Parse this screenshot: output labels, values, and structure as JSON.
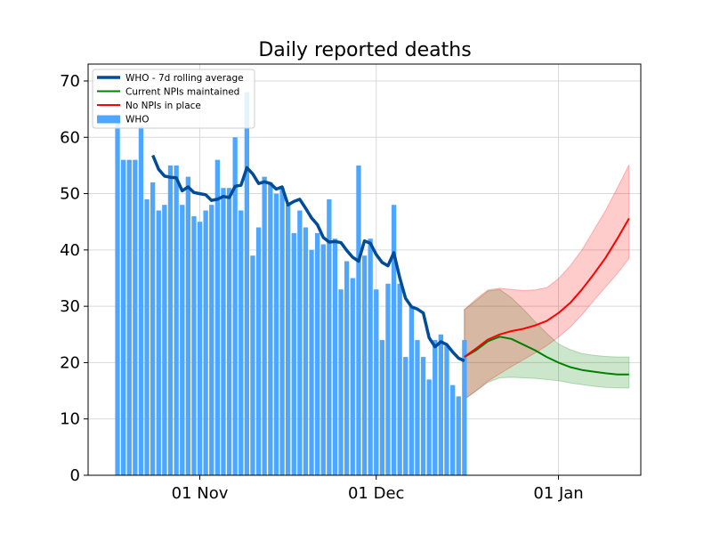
{
  "chart_data": {
    "type": "bar",
    "title": "Daily reported deaths",
    "xlabel": "",
    "ylabel": "",
    "x_axis": {
      "type": "date",
      "range": [
        "2020-10-13",
        "2021-01-15"
      ],
      "ticks": [
        {
          "date": "2020-11-01",
          "label": "01 Nov"
        },
        {
          "date": "2020-12-01",
          "label": "01 Dec"
        },
        {
          "date": "2021-01-01",
          "label": "01 Jan"
        }
      ]
    },
    "ylim": [
      0,
      73
    ],
    "yticks": [
      0,
      10,
      20,
      30,
      40,
      50,
      60,
      70
    ],
    "grid": true,
    "legend": {
      "position": "top-left",
      "entries": [
        {
          "label": "WHO - 7d rolling average",
          "style": "line",
          "color": "#004c99",
          "width": "thick"
        },
        {
          "label": "Current NPIs maintained",
          "style": "line",
          "color": "#008000",
          "width": "thin"
        },
        {
          "label": "No NPIs in place",
          "style": "line",
          "color": "#ff0000",
          "width": "thin"
        },
        {
          "label": "WHO",
          "style": "bar",
          "color": "#4da6ff"
        }
      ]
    },
    "bars": {
      "name": "WHO",
      "color": "#4da6ff",
      "x": [
        "2020-10-18",
        "2020-10-19",
        "2020-10-20",
        "2020-10-21",
        "2020-10-22",
        "2020-10-23",
        "2020-10-24",
        "2020-10-25",
        "2020-10-26",
        "2020-10-27",
        "2020-10-28",
        "2020-10-29",
        "2020-10-30",
        "2020-10-31",
        "2020-11-01",
        "2020-11-02",
        "2020-11-03",
        "2020-11-04",
        "2020-11-05",
        "2020-11-06",
        "2020-11-07",
        "2020-11-08",
        "2020-11-09",
        "2020-11-10",
        "2020-11-11",
        "2020-11-12",
        "2020-11-13",
        "2020-11-14",
        "2020-11-15",
        "2020-11-16",
        "2020-11-17",
        "2020-11-18",
        "2020-11-19",
        "2020-11-20",
        "2020-11-21",
        "2020-11-22",
        "2020-11-23",
        "2020-11-24",
        "2020-11-25",
        "2020-11-26",
        "2020-11-27",
        "2020-11-28",
        "2020-11-29",
        "2020-11-30",
        "2020-12-01",
        "2020-12-02",
        "2020-12-03",
        "2020-12-04",
        "2020-12-05",
        "2020-12-06",
        "2020-12-07",
        "2020-12-08",
        "2020-12-09",
        "2020-12-10",
        "2020-12-11",
        "2020-12-12",
        "2020-12-13",
        "2020-12-14",
        "2020-12-15",
        "2020-12-16",
        "2020-12-17",
        "2020-12-18"
      ],
      "values": [
        63,
        56,
        56,
        56,
        62,
        49,
        52,
        47,
        48,
        55,
        55,
        48,
        53,
        46,
        45,
        47,
        48,
        56,
        51,
        51,
        60,
        47,
        68,
        39,
        44,
        53,
        52,
        50,
        51,
        48,
        43,
        47,
        44,
        40,
        43,
        41,
        49,
        42,
        33,
        38,
        35,
        55,
        39,
        42,
        33,
        24,
        34,
        48,
        34,
        21,
        30,
        24,
        21,
        17,
        24,
        25,
        23,
        16,
        14,
        24,
        0,
        0
      ]
    },
    "series": [
      {
        "name": "WHO - 7d rolling average",
        "color": "#004c99",
        "x": [
          "2020-10-24",
          "2020-10-25",
          "2020-10-26",
          "2020-10-27",
          "2020-10-28",
          "2020-10-29",
          "2020-10-30",
          "2020-10-31",
          "2020-11-01",
          "2020-11-02",
          "2020-11-03",
          "2020-11-04",
          "2020-11-05",
          "2020-11-06",
          "2020-11-07",
          "2020-11-08",
          "2020-11-09",
          "2020-11-10",
          "2020-11-11",
          "2020-11-12",
          "2020-11-13",
          "2020-11-14",
          "2020-11-15",
          "2020-11-16",
          "2020-11-17",
          "2020-11-18",
          "2020-11-19",
          "2020-11-20",
          "2020-11-21",
          "2020-11-22",
          "2020-11-23",
          "2020-11-24",
          "2020-11-25",
          "2020-11-26",
          "2020-11-27",
          "2020-11-28",
          "2020-11-29",
          "2020-11-30",
          "2020-12-01",
          "2020-12-02",
          "2020-12-03",
          "2020-12-04",
          "2020-12-05",
          "2020-12-06",
          "2020-12-07",
          "2020-12-08",
          "2020-12-09",
          "2020-12-10",
          "2020-12-11",
          "2020-12-12",
          "2020-12-13",
          "2020-12-14",
          "2020-12-15",
          "2020-12-16",
          "2020-12-17"
        ],
        "values": [
          56.8,
          54.3,
          53.1,
          52.9,
          52.8,
          50.5,
          51.2,
          50.2,
          50.0,
          49.8,
          48.8,
          49.0,
          49.5,
          49.3,
          51.3,
          51.5,
          54.6,
          53.5,
          51.8,
          52.1,
          51.8,
          50.8,
          51.2,
          48.0,
          48.6,
          49.0,
          47.4,
          45.7,
          44.5,
          42.2,
          41.4,
          41.5,
          41.3,
          39.9,
          38.7,
          38.0,
          41.6,
          41.2,
          39.2,
          37.8,
          37.2,
          39.5,
          35.1,
          31.4,
          29.9,
          29.5,
          28.8,
          24.4,
          22.8,
          23.7,
          23.2,
          21.9,
          20.8,
          20.3,
          null
        ]
      },
      {
        "name": "Current NPIs maintained",
        "color": "#008000",
        "x": [
          "2020-12-16",
          "2020-12-18",
          "2020-12-20",
          "2020-12-22",
          "2020-12-24",
          "2020-12-26",
          "2020-12-28",
          "2020-12-30",
          "2021-01-01",
          "2021-01-03",
          "2021-01-05",
          "2021-01-07",
          "2021-01-09",
          "2021-01-11",
          "2021-01-13"
        ],
        "values": [
          21.0,
          22.2,
          23.8,
          24.6,
          24.2,
          23.2,
          22.2,
          21.0,
          20.0,
          19.2,
          18.7,
          18.4,
          18.1,
          17.9,
          17.9
        ],
        "band_low": [
          13.5,
          15.0,
          16.5,
          17.3,
          17.4,
          17.3,
          17.2,
          17.0,
          16.8,
          16.4,
          16.1,
          15.8,
          15.6,
          15.5,
          15.5
        ],
        "band_high": [
          29.4,
          31.0,
          32.7,
          33.0,
          31.5,
          29.5,
          27.3,
          25.2,
          23.3,
          22.3,
          21.6,
          21.3,
          21.1,
          21.0,
          21.0
        ]
      },
      {
        "name": "No NPIs in place",
        "color": "#ff0000",
        "x": [
          "2020-12-16",
          "2020-12-18",
          "2020-12-20",
          "2020-12-22",
          "2020-12-24",
          "2020-12-26",
          "2020-12-28",
          "2020-12-30",
          "2021-01-01",
          "2021-01-03",
          "2021-01-05",
          "2021-01-07",
          "2021-01-09",
          "2021-01-11",
          "2021-01-13"
        ],
        "values": [
          21.0,
          22.5,
          24.1,
          25.0,
          25.6,
          26.0,
          26.6,
          27.4,
          28.8,
          30.6,
          33.0,
          35.7,
          38.6,
          42.0,
          45.6
        ],
        "band_low": [
          13.5,
          15.0,
          16.7,
          18.0,
          19.3,
          20.5,
          21.7,
          23.0,
          24.5,
          26.3,
          28.5,
          31.0,
          33.4,
          35.8,
          38.5
        ],
        "band_high": [
          29.4,
          31.3,
          32.9,
          33.2,
          33.0,
          32.8,
          32.9,
          33.3,
          34.9,
          37.2,
          40.0,
          43.5,
          47.0,
          51.0,
          55.1
        ]
      }
    ]
  }
}
